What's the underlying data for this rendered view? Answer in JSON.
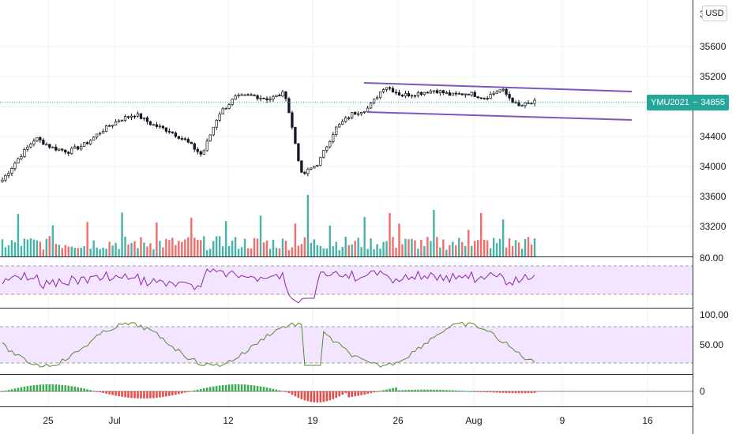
{
  "currency_button": "USD",
  "last_price": {
    "symbol": "YMU2021",
    "separator": "−",
    "value": "34855",
    "color": "#26a69a"
  },
  "top_partial_label": "3",
  "colors": {
    "up": "#26a69a",
    "down": "#ef5350",
    "channel": "#7e57c2",
    "rsi_line": "#8e24aa",
    "stoch_line": "#558b2f",
    "band_fill": "#f3e5ff"
  },
  "chart_data": {
    "type": "line",
    "panes": [
      {
        "name": "price",
        "type": "candlestick",
        "yaxis_ticks": [
          33200,
          33600,
          34000,
          34400,
          34800,
          35200,
          35600
        ],
        "ylim": [
          32900,
          35900
        ],
        "series": [
          {
            "date": "Jun 22",
            "close": 33820
          },
          {
            "date": "Jun 23",
            "close": 34120
          },
          {
            "date": "Jun 24",
            "close": 34380
          },
          {
            "date": "Jun 25",
            "close": 34250
          },
          {
            "date": "Jun 28",
            "close": 34200
          },
          {
            "date": "Jun 29",
            "close": 34300
          },
          {
            "date": "Jun 30",
            "close": 34480
          },
          {
            "date": "Jul 1",
            "close": 34620
          },
          {
            "date": "Jul 2",
            "close": 34700
          },
          {
            "date": "Jul 6",
            "close": 34560
          },
          {
            "date": "Jul 7",
            "close": 34480
          },
          {
            "date": "Jul 8",
            "close": 34350
          },
          {
            "date": "Jul 9",
            "close": 34150
          },
          {
            "date": "Jul 12",
            "close": 34700
          },
          {
            "date": "Jul 13",
            "close": 34920
          },
          {
            "date": "Jul 14",
            "close": 34950
          },
          {
            "date": "Jul 15",
            "close": 34900
          },
          {
            "date": "Jul 16",
            "close": 34980
          },
          {
            "date": "Jul 19",
            "close": 33880
          },
          {
            "date": "Jul 20",
            "close": 34050
          },
          {
            "date": "Jul 21",
            "close": 34500
          },
          {
            "date": "Jul 22",
            "close": 34700
          },
          {
            "date": "Jul 23",
            "close": 34780
          },
          {
            "date": "Jul 26",
            "close": 35080
          },
          {
            "date": "Jul 27",
            "close": 34950
          },
          {
            "date": "Jul 28",
            "close": 34980
          },
          {
            "date": "Jul 29",
            "close": 35020
          },
          {
            "date": "Jul 30",
            "close": 34950
          },
          {
            "date": "Aug 2",
            "close": 34980
          },
          {
            "date": "Aug 3",
            "close": 34920
          },
          {
            "date": "Aug 4",
            "close": 35030
          },
          {
            "date": "Aug 5",
            "close": 34800
          },
          {
            "date": "Aug 6",
            "close": 34855
          }
        ],
        "channel": {
          "upper": [
            {
              "date": "Jul 23",
              "value": 35110
            },
            {
              "date": "Aug 13",
              "value": 35000
            }
          ],
          "lower": [
            {
              "date": "Jul 23",
              "value": 34770
            },
            {
              "date": "Aug 13",
              "value": 34580
            }
          ]
        }
      },
      {
        "name": "volume",
        "type": "bar"
      },
      {
        "name": "rsi",
        "type": "line",
        "yaxis_ticks": [
          "80.00"
        ],
        "band": [
          30,
          70
        ]
      },
      {
        "name": "stochastic",
        "type": "line",
        "yaxis_ticks": [
          "100.00",
          "50.00"
        ],
        "band": [
          20,
          80
        ]
      },
      {
        "name": "momentum",
        "type": "bar",
        "yaxis_ticks": [
          "0"
        ]
      }
    ],
    "x_ticks": [
      "25",
      "Jul",
      "12",
      "19",
      "26",
      "Aug",
      "9",
      "16"
    ]
  }
}
